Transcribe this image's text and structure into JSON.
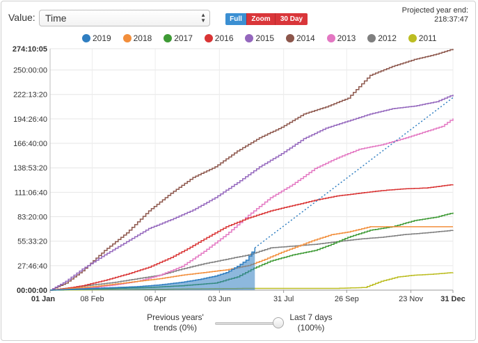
{
  "controls": {
    "value_label": "Value:",
    "value_selected": "Time",
    "range_buttons": [
      "Full",
      "Zoom",
      "30 Day"
    ],
    "projected_label": "Projected year end:",
    "projected_value": "218:37:47"
  },
  "slider": {
    "left_line1": "Previous years'",
    "left_line2": "trends (0%)",
    "right_line1": "Last 7 days",
    "right_line2": "(100%)",
    "value_percent": 100
  },
  "chart_data": {
    "type": "line",
    "title": "",
    "xlabel": "",
    "ylabel": "",
    "y_unit": "hours",
    "ylim": [
      0,
      274.168
    ],
    "xlim": [
      1,
      365
    ],
    "x_unit": "day of year",
    "y_ticks": [
      {
        "label": "00:00:00",
        "value": 0
      },
      {
        "label": "27:46:40",
        "value": 27.778
      },
      {
        "label": "55:33:20",
        "value": 55.556
      },
      {
        "label": "83:20:00",
        "value": 83.333
      },
      {
        "label": "111:06:40",
        "value": 111.111
      },
      {
        "label": "138:53:20",
        "value": 138.889
      },
      {
        "label": "166:40:00",
        "value": 166.667
      },
      {
        "label": "194:26:40",
        "value": 194.444
      },
      {
        "label": "222:13:20",
        "value": 222.222
      },
      {
        "label": "250:00:00",
        "value": 250.0
      },
      {
        "label": "274:10:05",
        "value": 274.168
      }
    ],
    "x_ticks": [
      {
        "label": "01 Jan",
        "day": 1
      },
      {
        "label": "08 Feb",
        "day": 39
      },
      {
        "label": "06 Apr",
        "day": 96
      },
      {
        "label": "03 Jun",
        "day": 154
      },
      {
        "label": "31 Jul",
        "day": 212
      },
      {
        "label": "26 Sep",
        "day": 269
      },
      {
        "label": "23 Nov",
        "day": 327
      },
      {
        "label": "31 Dec",
        "day": 365
      }
    ],
    "grid": true,
    "legend_position": "top",
    "current_series": "2019",
    "current_day": 186,
    "projection": {
      "from": [
        186,
        48
      ],
      "to": [
        365,
        218.6
      ]
    },
    "series": [
      {
        "name": "2019",
        "color": "#2f7ec1",
        "area": true,
        "points": [
          [
            1,
            0
          ],
          [
            20,
            1
          ],
          [
            40,
            2
          ],
          [
            60,
            3
          ],
          [
            80,
            4
          ],
          [
            100,
            6
          ],
          [
            120,
            9
          ],
          [
            135,
            12
          ],
          [
            150,
            16
          ],
          [
            160,
            20
          ],
          [
            170,
            27
          ],
          [
            178,
            34
          ],
          [
            186,
            48
          ]
        ]
      },
      {
        "name": "2018",
        "color": "#f28e3b",
        "points": [
          [
            1,
            0
          ],
          [
            20,
            2
          ],
          [
            40,
            4
          ],
          [
            60,
            7
          ],
          [
            80,
            10
          ],
          [
            100,
            13
          ],
          [
            120,
            17
          ],
          [
            140,
            20
          ],
          [
            160,
            23
          ],
          [
            180,
            28
          ],
          [
            195,
            35
          ],
          [
            210,
            43
          ],
          [
            225,
            50
          ],
          [
            240,
            57
          ],
          [
            255,
            63
          ],
          [
            270,
            66
          ],
          [
            290,
            72
          ],
          [
            320,
            72
          ],
          [
            365,
            72
          ]
        ]
      },
      {
        "name": "2017",
        "color": "#3e9a35",
        "points": [
          [
            1,
            0
          ],
          [
            30,
            1
          ],
          [
            60,
            2
          ],
          [
            90,
            3
          ],
          [
            120,
            5
          ],
          [
            150,
            8
          ],
          [
            170,
            15
          ],
          [
            185,
            25
          ],
          [
            200,
            33
          ],
          [
            220,
            40
          ],
          [
            240,
            45
          ],
          [
            255,
            52
          ],
          [
            270,
            60
          ],
          [
            290,
            68
          ],
          [
            310,
            72
          ],
          [
            330,
            79
          ],
          [
            350,
            83
          ],
          [
            365,
            88
          ]
        ]
      },
      {
        "name": "2016",
        "color": "#d93434",
        "points": [
          [
            1,
            0
          ],
          [
            15,
            2
          ],
          [
            30,
            5
          ],
          [
            50,
            11
          ],
          [
            70,
            18
          ],
          [
            90,
            26
          ],
          [
            110,
            37
          ],
          [
            125,
            47
          ],
          [
            140,
            58
          ],
          [
            160,
            72
          ],
          [
            180,
            82
          ],
          [
            200,
            90
          ],
          [
            220,
            96
          ],
          [
            240,
            102
          ],
          [
            260,
            107
          ],
          [
            280,
            110
          ],
          [
            300,
            113
          ],
          [
            320,
            115
          ],
          [
            340,
            116
          ],
          [
            365,
            120
          ]
        ]
      },
      {
        "name": "2015",
        "color": "#9467bd",
        "points": [
          [
            1,
            0
          ],
          [
            15,
            10
          ],
          [
            30,
            24
          ],
          [
            50,
            40
          ],
          [
            70,
            55
          ],
          [
            90,
            70
          ],
          [
            110,
            80
          ],
          [
            130,
            91
          ],
          [
            150,
            105
          ],
          [
            170,
            122
          ],
          [
            190,
            140
          ],
          [
            210,
            155
          ],
          [
            230,
            172
          ],
          [
            250,
            184
          ],
          [
            270,
            192
          ],
          [
            290,
            200
          ],
          [
            310,
            206
          ],
          [
            330,
            209
          ],
          [
            350,
            214
          ],
          [
            365,
            222
          ]
        ]
      },
      {
        "name": "2014",
        "color": "#8c564b",
        "points": [
          [
            1,
            0
          ],
          [
            15,
            8
          ],
          [
            30,
            22
          ],
          [
            50,
            45
          ],
          [
            70,
            65
          ],
          [
            90,
            90
          ],
          [
            110,
            110
          ],
          [
            130,
            128
          ],
          [
            150,
            140
          ],
          [
            170,
            158
          ],
          [
            190,
            173
          ],
          [
            210,
            185
          ],
          [
            230,
            200
          ],
          [
            250,
            208
          ],
          [
            270,
            218
          ],
          [
            290,
            244
          ],
          [
            310,
            254
          ],
          [
            330,
            262
          ],
          [
            350,
            268
          ],
          [
            365,
            274
          ]
        ]
      },
      {
        "name": "2013",
        "color": "#e377c2",
        "points": [
          [
            1,
            0
          ],
          [
            20,
            1
          ],
          [
            40,
            3
          ],
          [
            60,
            6
          ],
          [
            80,
            10
          ],
          [
            100,
            17
          ],
          [
            120,
            27
          ],
          [
            140,
            44
          ],
          [
            160,
            63
          ],
          [
            180,
            85
          ],
          [
            200,
            105
          ],
          [
            220,
            120
          ],
          [
            240,
            138
          ],
          [
            260,
            150
          ],
          [
            280,
            160
          ],
          [
            300,
            165
          ],
          [
            320,
            172
          ],
          [
            340,
            180
          ],
          [
            355,
            186
          ],
          [
            365,
            195
          ]
        ]
      },
      {
        "name": "2012",
        "color": "#7f7f7f",
        "points": [
          [
            1,
            0
          ],
          [
            20,
            3
          ],
          [
            40,
            6
          ],
          [
            60,
            9
          ],
          [
            80,
            13
          ],
          [
            100,
            17
          ],
          [
            120,
            24
          ],
          [
            140,
            30
          ],
          [
            160,
            35
          ],
          [
            180,
            40
          ],
          [
            200,
            48
          ],
          [
            220,
            50
          ],
          [
            240,
            52
          ],
          [
            260,
            55
          ],
          [
            280,
            58
          ],
          [
            300,
            60
          ],
          [
            320,
            63
          ],
          [
            340,
            65
          ],
          [
            365,
            68
          ]
        ]
      },
      {
        "name": "2011",
        "color": "#bcbd22",
        "points": [
          [
            1,
            0
          ],
          [
            100,
            1
          ],
          [
            180,
            2
          ],
          [
            260,
            2
          ],
          [
            285,
            3
          ],
          [
            300,
            10
          ],
          [
            315,
            15
          ],
          [
            330,
            17
          ],
          [
            345,
            18
          ],
          [
            365,
            20
          ]
        ]
      }
    ]
  }
}
